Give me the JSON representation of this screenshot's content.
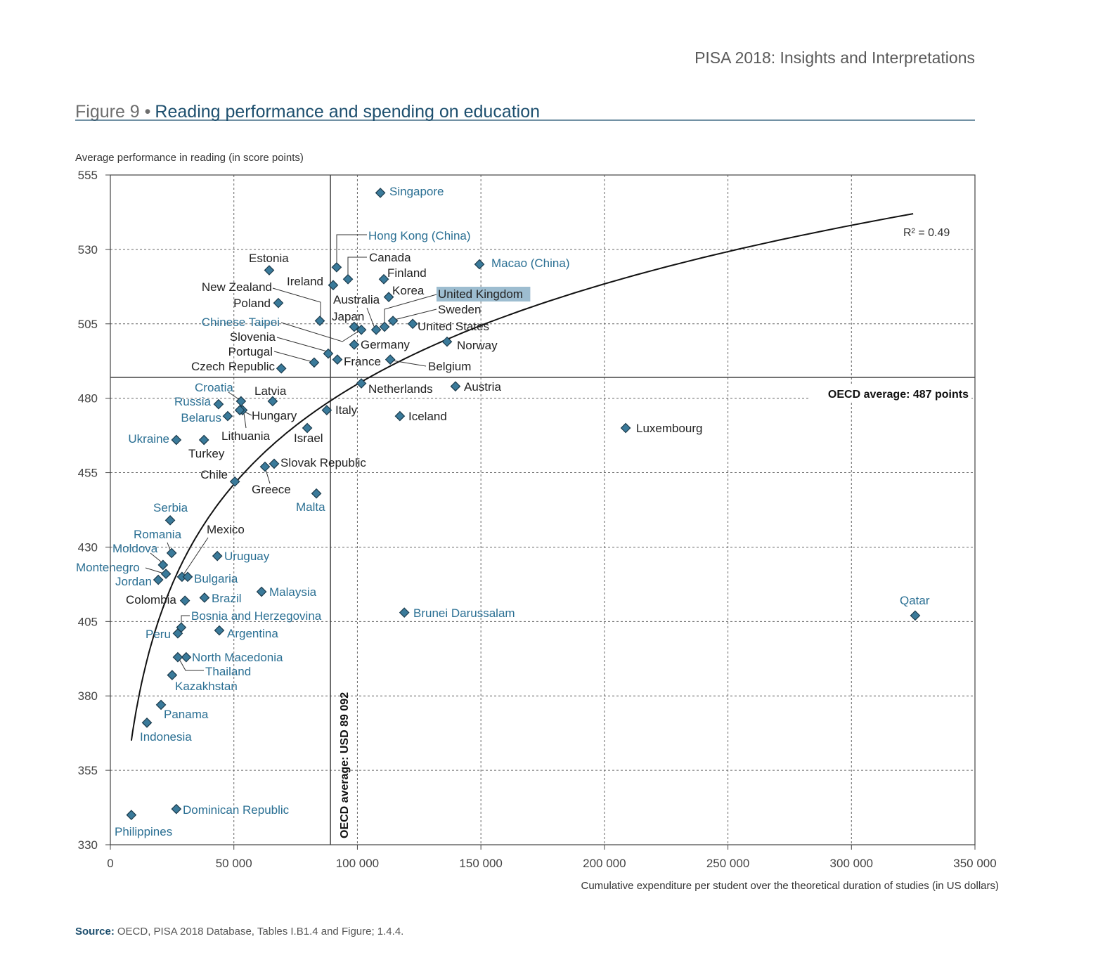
{
  "header": {
    "publication": "PISA 2018: Insights and Interpretations"
  },
  "figure": {
    "number": "Figure 9 •",
    "title": "Reading performance and spending on education"
  },
  "source": {
    "label": "Source:",
    "text": "OECD, PISA 2018 Database, Tables I.B1.4 and Figure; 1.4.4."
  },
  "colors": {
    "marker": "#3a7a9a",
    "marker_outline": "#1c3b4c",
    "oecd_label": "#222222",
    "partner_label": "#2a6f93",
    "title": "#1d4f6e",
    "highlight": "#9dbdd0"
  },
  "chart_data": {
    "type": "scatter",
    "ylabel": "Average performance in reading (in score points)",
    "xlabel": "Cumulative expenditure per student over the theoretical duration of studies (in US dollars)",
    "xlim": [
      0,
      350000
    ],
    "ylim": [
      330,
      555
    ],
    "x_ticks": [
      "0",
      "50 000",
      "100 000",
      "150 000",
      "200 000",
      "250 000",
      "300 000",
      "350 000"
    ],
    "y_ticks": [
      "555",
      "530",
      "505",
      "480",
      "455",
      "430",
      "405",
      "380",
      "355",
      "330"
    ],
    "grid": true,
    "reference_lines": {
      "x_value": 89092,
      "x_label": "OECD average: USD 89 092",
      "y_value": 487,
      "y_label": "OECD average: 487 points"
    },
    "trendline": {
      "type": "logarithmic",
      "x_range": [
        8500,
        325000
      ],
      "y_at_range": [
        365,
        542
      ],
      "label": "R² = 0.49"
    },
    "highlighted": "United Kingdom",
    "points": [
      {
        "name": "Singapore",
        "x": 109300,
        "y": 549,
        "oecd": false
      },
      {
        "name": "Hong Kong (China)",
        "x": 91600,
        "y": 524,
        "oecd": false
      },
      {
        "name": "Canada",
        "x": 96200,
        "y": 520,
        "oecd": true
      },
      {
        "name": "Finland",
        "x": 110700,
        "y": 520,
        "oecd": true
      },
      {
        "name": "Macao (China)",
        "x": 149400,
        "y": 525,
        "oecd": false
      },
      {
        "name": "Estonia",
        "x": 64300,
        "y": 523,
        "oecd": true
      },
      {
        "name": "Ireland",
        "x": 90200,
        "y": 518,
        "oecd": true
      },
      {
        "name": "Korea",
        "x": 112700,
        "y": 514,
        "oecd": true
      },
      {
        "name": "Poland",
        "x": 68000,
        "y": 512,
        "oecd": true
      },
      {
        "name": "New Zealand",
        "x": 84800,
        "y": 506,
        "oecd": true
      },
      {
        "name": "Chinese Taipei",
        "x": 101600,
        "y": 503,
        "oecd": false
      },
      {
        "name": "Japan",
        "x": 98700,
        "y": 504,
        "oecd": true
      },
      {
        "name": "Australia",
        "x": 107600,
        "y": 503,
        "oecd": true
      },
      {
        "name": "United Kingdom",
        "x": 111000,
        "y": 504,
        "oecd": true
      },
      {
        "name": "Sweden",
        "x": 114400,
        "y": 506,
        "oecd": true
      },
      {
        "name": "United States",
        "x": 122400,
        "y": 505,
        "oecd": true
      },
      {
        "name": "Germany",
        "x": 98700,
        "y": 498,
        "oecd": true
      },
      {
        "name": "Slovenia",
        "x": 88200,
        "y": 495,
        "oecd": true
      },
      {
        "name": "Portugal",
        "x": 82500,
        "y": 492,
        "oecd": true
      },
      {
        "name": "France",
        "x": 91900,
        "y": 493,
        "oecd": true
      },
      {
        "name": "Belgium",
        "x": 113300,
        "y": 493,
        "oecd": true
      },
      {
        "name": "Czech Republic",
        "x": 69200,
        "y": 490,
        "oecd": true
      },
      {
        "name": "Norway",
        "x": 136300,
        "y": 499,
        "oecd": true
      },
      {
        "name": "Netherlands",
        "x": 101600,
        "y": 485,
        "oecd": true
      },
      {
        "name": "Austria",
        "x": 139700,
        "y": 484,
        "oecd": true
      },
      {
        "name": "Latvia",
        "x": 65700,
        "y": 479,
        "oecd": true
      },
      {
        "name": "Croatia",
        "x": 52900,
        "y": 479,
        "oecd": false
      },
      {
        "name": "Russia",
        "x": 43800,
        "y": 478,
        "oecd": false
      },
      {
        "name": "Hungary",
        "x": 53500,
        "y": 476,
        "oecd": true
      },
      {
        "name": "Lithuania",
        "x": 52400,
        "y": 476,
        "oecd": true
      },
      {
        "name": "Belarus",
        "x": 47500,
        "y": 474,
        "oecd": false
      },
      {
        "name": "Italy",
        "x": 87600,
        "y": 476,
        "oecd": true
      },
      {
        "name": "Iceland",
        "x": 117200,
        "y": 474,
        "oecd": true
      },
      {
        "name": "Israel",
        "x": 79700,
        "y": 470,
        "oecd": true
      },
      {
        "name": "Luxembourg",
        "x": 208600,
        "y": 470,
        "oecd": true
      },
      {
        "name": "Ukraine",
        "x": 26700,
        "y": 466,
        "oecd": false
      },
      {
        "name": "Turkey",
        "x": 37900,
        "y": 466,
        "oecd": true
      },
      {
        "name": "Slovak Republic",
        "x": 66300,
        "y": 458,
        "oecd": true
      },
      {
        "name": "Greece",
        "x": 62600,
        "y": 457,
        "oecd": true
      },
      {
        "name": "Chile",
        "x": 50400,
        "y": 452,
        "oecd": true
      },
      {
        "name": "Malta",
        "x": 83400,
        "y": 448,
        "oecd": false
      },
      {
        "name": "Serbia",
        "x": 24200,
        "y": 439,
        "oecd": false
      },
      {
        "name": "Romania",
        "x": 24800,
        "y": 428,
        "oecd": false
      },
      {
        "name": "Uruguay",
        "x": 43300,
        "y": 427,
        "oecd": false
      },
      {
        "name": "Moldova",
        "x": 21300,
        "y": 424,
        "oecd": false
      },
      {
        "name": "Montenegro",
        "x": 22500,
        "y": 421,
        "oecd": false
      },
      {
        "name": "Jordan",
        "x": 19400,
        "y": 419,
        "oecd": false
      },
      {
        "name": "Mexico",
        "x": 29000,
        "y": 420,
        "oecd": true
      },
      {
        "name": "Bulgaria",
        "x": 31300,
        "y": 420,
        "oecd": false
      },
      {
        "name": "Colombia",
        "x": 30200,
        "y": 412,
        "oecd": true
      },
      {
        "name": "Brazil",
        "x": 38100,
        "y": 413,
        "oecd": false
      },
      {
        "name": "Malaysia",
        "x": 61200,
        "y": 415,
        "oecd": false
      },
      {
        "name": "Brunei Darussalam",
        "x": 119000,
        "y": 408,
        "oecd": false
      },
      {
        "name": "Qatar",
        "x": 325800,
        "y": 407,
        "oecd": false
      },
      {
        "name": "Bosnia and Herzegovina",
        "x": 28700,
        "y": 403,
        "oecd": false
      },
      {
        "name": "Peru",
        "x": 27300,
        "y": 401,
        "oecd": false
      },
      {
        "name": "Argentina",
        "x": 44100,
        "y": 402,
        "oecd": false
      },
      {
        "name": "North Macedonia",
        "x": 30700,
        "y": 393,
        "oecd": false
      },
      {
        "name": "Thailand",
        "x": 27300,
        "y": 393,
        "oecd": false
      },
      {
        "name": "Kazakhstan",
        "x": 25000,
        "y": 387,
        "oecd": false
      },
      {
        "name": "Panama",
        "x": 20500,
        "y": 377,
        "oecd": false
      },
      {
        "name": "Indonesia",
        "x": 14800,
        "y": 371,
        "oecd": false
      },
      {
        "name": "Dominican Republic",
        "x": 26700,
        "y": 342,
        "oecd": false
      },
      {
        "name": "Philippines",
        "x": 8500,
        "y": 340,
        "oecd": false
      }
    ]
  }
}
